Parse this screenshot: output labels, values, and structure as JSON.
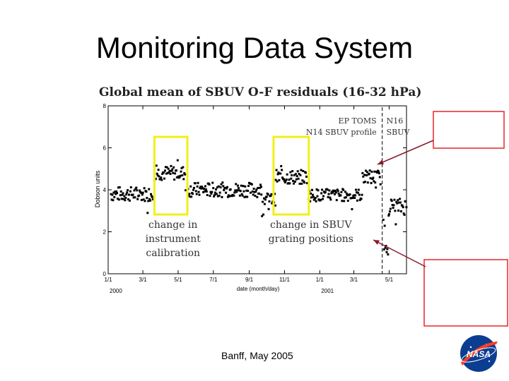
{
  "slide": {
    "title": "Monitoring Data System",
    "footer": "Banff, May 2005"
  },
  "icons": {
    "logo": "nasa-meatball-icon",
    "logo_text": "NASA"
  },
  "colors": {
    "callout_box": "#e8242a",
    "highlight_box": "#f2ef1a",
    "arrow": "#8b1a2a",
    "marker": "#000000"
  },
  "chart_data": {
    "type": "scatter",
    "title": "Global mean of SBUV O-F residuals (16-32 hPa)",
    "xlabel": "date (month/day)",
    "ylabel": "Dobson units",
    "ylim": [
      0,
      8
    ],
    "yticks": [
      0,
      2,
      4,
      6,
      8
    ],
    "xticks": [
      {
        "label": "1/1",
        "day": 0
      },
      {
        "label": "3/1",
        "day": 60
      },
      {
        "label": "5/1",
        "day": 121
      },
      {
        "label": "7/1",
        "day": 182
      },
      {
        "label": "9/1",
        "day": 244
      },
      {
        "label": "11/1",
        "day": 305
      },
      {
        "label": "1/1",
        "day": 366
      },
      {
        "label": "3/1",
        "day": 425
      },
      {
        "label": "5/1",
        "day": 486
      }
    ],
    "xlim_days": [
      0,
      516
    ],
    "year_labels": [
      {
        "label": "2000",
        "day": 0
      },
      {
        "label": "2001",
        "day": 366
      }
    ],
    "grid": false,
    "divider": {
      "day": 474
    },
    "legend_left": [
      "EP TOMS",
      "N14 SBUV profile"
    ],
    "legend_right": [
      "N16",
      "SBUV"
    ],
    "annotations": [
      {
        "text": [
          "change in",
          "instrument",
          "calibration"
        ],
        "from_day": 80,
        "to_day": 137
      },
      {
        "text": [
          "change in SBUV",
          "grating positions"
        ],
        "from_day": 286,
        "to_day": 347
      }
    ],
    "segments": [
      {
        "from": 5,
        "to": 78,
        "mean": 3.8,
        "amp": 0.35
      },
      {
        "from": 80,
        "to": 135,
        "mean": 4.8,
        "amp": 0.35
      },
      {
        "from": 137,
        "to": 265,
        "mean": 4.0,
        "amp": 0.35
      },
      {
        "from": 265,
        "to": 290,
        "mean": 3.55,
        "amp": 0.3
      },
      {
        "from": 290,
        "to": 345,
        "mean": 4.6,
        "amp": 0.35
      },
      {
        "from": 347,
        "to": 440,
        "mean": 3.75,
        "amp": 0.3
      },
      {
        "from": 440,
        "to": 472,
        "mean": 4.6,
        "amp": 0.35
      },
      {
        "from": 476,
        "to": 486,
        "mean": 1.8,
        "amp": 0.9
      },
      {
        "from": 486,
        "to": 516,
        "mean": 3.2,
        "amp": 0.4
      }
    ]
  }
}
